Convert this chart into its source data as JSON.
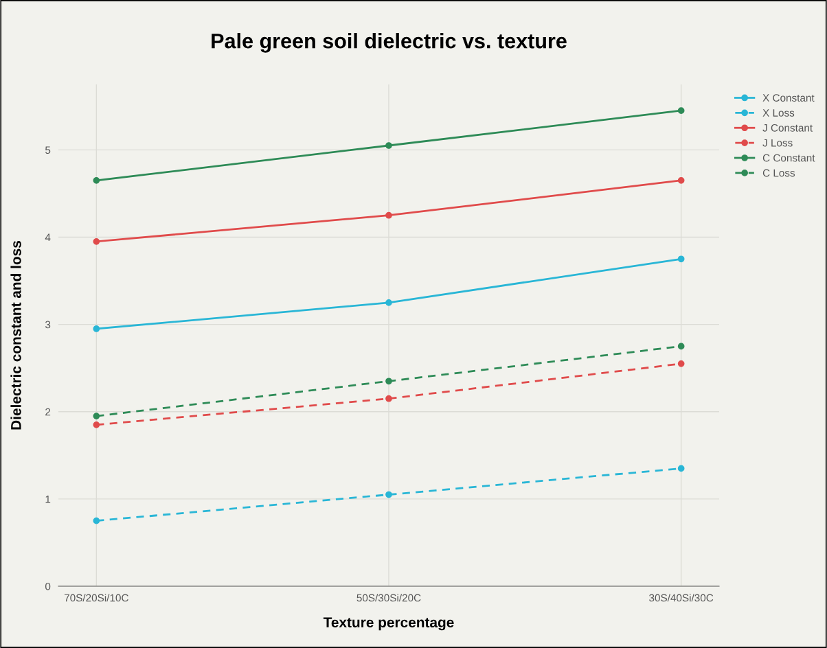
{
  "chart_data": {
    "type": "line",
    "title": "Pale green soil dielectric vs. texture",
    "xlabel": "Texture percentage",
    "ylabel": "Dielectric constant and loss",
    "categories": [
      "70S/20Si/10C",
      "50S/30Si/20C",
      "30S/40Si/30C"
    ],
    "series": [
      {
        "name": "X Constant",
        "color": "#29b6d6",
        "values": [
          2.95,
          3.25,
          3.75
        ],
        "line_style": "solid"
      },
      {
        "name": "X Loss",
        "color": "#29b6d6",
        "values": [
          0.75,
          1.05,
          1.35
        ],
        "line_style": "dashed"
      },
      {
        "name": "J Constant",
        "color": "#e04b4b",
        "values": [
          3.95,
          4.25,
          4.65
        ],
        "line_style": "solid"
      },
      {
        "name": "J Loss",
        "color": "#e04b4b",
        "values": [
          1.85,
          2.15,
          2.55
        ],
        "line_style": "dashed"
      },
      {
        "name": "C Constant",
        "color": "#2e8b57",
        "values": [
          4.65,
          5.05,
          5.45
        ],
        "line_style": "solid"
      },
      {
        "name": "C Loss",
        "color": "#2e8b57",
        "values": [
          1.95,
          2.35,
          2.75
        ],
        "line_style": "dashed"
      }
    ],
    "ylim": [
      0,
      5.75
    ],
    "yticks": [
      0,
      1,
      2,
      3,
      4,
      5
    ],
    "grid": true,
    "legend": "top right",
    "marker": "circle"
  }
}
